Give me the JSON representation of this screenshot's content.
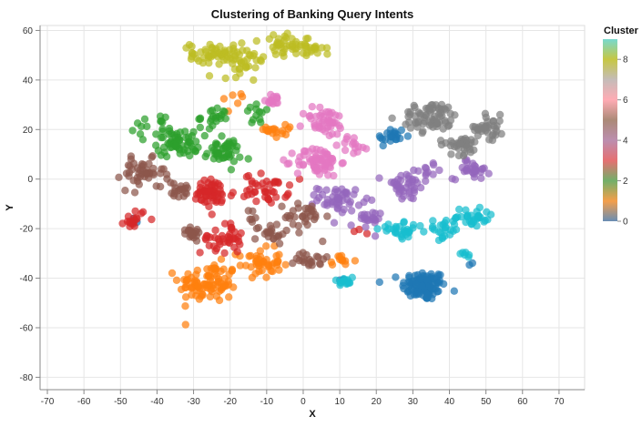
{
  "chart_data": {
    "type": "scatter",
    "title": "Clustering of Banking Query Intents",
    "xlabel": "X",
    "ylabel": "Y",
    "xlim": [
      -72,
      77
    ],
    "ylim": [
      -85,
      62
    ],
    "xticks": [
      -70,
      -60,
      -50,
      -40,
      -30,
      -20,
      -10,
      0,
      10,
      20,
      30,
      40,
      50,
      60,
      70
    ],
    "yticks": [
      -80,
      -60,
      -40,
      -20,
      0,
      20,
      40,
      60
    ],
    "grid": true,
    "legend": {
      "title": "Cluster",
      "position": "right",
      "type": "gradient",
      "ticks": [
        0,
        2,
        4,
        6,
        8
      ],
      "range": [
        0,
        9
      ],
      "stops": [
        "#4e79a7",
        "#f28e2b",
        "#59a14f",
        "#e15759",
        "#b07aa1",
        "#9c755f",
        "#ff9da7",
        "#bab0ac",
        "#bcbd22",
        "#5fd3c6"
      ]
    },
    "series": [
      {
        "cluster": 0,
        "color": "#1f77b4",
        "centers": [
          {
            "x": 33,
            "y": -43,
            "spread": [
              3,
              3
            ],
            "n": 110
          },
          {
            "x": 24,
            "y": 17,
            "spread": [
              2,
              2
            ],
            "n": 22
          },
          {
            "x": -46,
            "y": -16,
            "spread": [
              1,
              1
            ],
            "n": 3
          },
          {
            "x": 11,
            "y": -41,
            "spread": [
              1,
              1
            ],
            "n": 3
          },
          {
            "x": 46,
            "y": -35,
            "spread": [
              1,
              1
            ],
            "n": 2
          }
        ]
      },
      {
        "cluster": 1,
        "color": "#ff7f0e",
        "centers": [
          {
            "x": -26,
            "y": -42,
            "spread": [
              4,
              4
            ],
            "n": 90
          },
          {
            "x": -12,
            "y": -34,
            "spread": [
              3,
              3
            ],
            "n": 45
          },
          {
            "x": -6,
            "y": 20,
            "spread": [
              2,
              2
            ],
            "n": 18
          },
          {
            "x": 10,
            "y": -33,
            "spread": [
              2,
              1
            ],
            "n": 12
          },
          {
            "x": -19,
            "y": 32,
            "spread": [
              2,
              2
            ],
            "n": 6
          }
        ]
      },
      {
        "cluster": 2,
        "color": "#2ca02c",
        "centers": [
          {
            "x": -34,
            "y": 15,
            "spread": [
              3,
              3
            ],
            "n": 60
          },
          {
            "x": -22,
            "y": 11,
            "spread": [
              2.5,
              2.5
            ],
            "n": 45
          },
          {
            "x": -24,
            "y": 25,
            "spread": [
              2,
              2
            ],
            "n": 20
          },
          {
            "x": -42,
            "y": 21,
            "spread": [
              2,
              2
            ],
            "n": 14
          },
          {
            "x": -12,
            "y": 26,
            "spread": [
              2,
              2
            ],
            "n": 12
          }
        ]
      },
      {
        "cluster": 3,
        "color": "#d62728",
        "centers": [
          {
            "x": -25,
            "y": -6,
            "spread": [
              3,
              3
            ],
            "n": 55
          },
          {
            "x": -10,
            "y": -4,
            "spread": [
              3,
              3
            ],
            "n": 40
          },
          {
            "x": -22,
            "y": -24,
            "spread": [
              3,
              3
            ],
            "n": 40
          },
          {
            "x": -46,
            "y": -16,
            "spread": [
              1.5,
              2
            ],
            "n": 18
          },
          {
            "x": 16,
            "y": -21,
            "spread": [
              1,
              1
            ],
            "n": 3
          }
        ]
      },
      {
        "cluster": 4,
        "color": "#9467bd",
        "centers": [
          {
            "x": 10,
            "y": -8,
            "spread": [
              3,
              2.5
            ],
            "n": 50
          },
          {
            "x": 17,
            "y": -17,
            "spread": [
              2,
              2
            ],
            "n": 22
          },
          {
            "x": 28,
            "y": -3,
            "spread": [
              3,
              3
            ],
            "n": 40
          },
          {
            "x": 46,
            "y": 4,
            "spread": [
              2.5,
              2
            ],
            "n": 30
          },
          {
            "x": 35,
            "y": 4,
            "spread": [
              1.5,
              1.5
            ],
            "n": 10
          }
        ]
      },
      {
        "cluster": 5,
        "color": "#8c564b",
        "centers": [
          {
            "x": -44,
            "y": 2,
            "spread": [
              3,
              3
            ],
            "n": 45
          },
          {
            "x": -34,
            "y": -5,
            "spread": [
              2,
              2
            ],
            "n": 20
          },
          {
            "x": -31,
            "y": -21,
            "spread": [
              2,
              1.5
            ],
            "n": 20
          },
          {
            "x": -9,
            "y": -22,
            "spread": [
              2,
              2
            ],
            "n": 22
          },
          {
            "x": 2,
            "y": -32,
            "spread": [
              2,
              2
            ],
            "n": 22
          },
          {
            "x": 1,
            "y": -15,
            "spread": [
              3,
              3
            ],
            "n": 30
          },
          {
            "x": -15,
            "y": -15,
            "spread": [
              1.5,
              1.5
            ],
            "n": 6
          }
        ]
      },
      {
        "cluster": 6,
        "color": "#e377c2",
        "centers": [
          {
            "x": 4,
            "y": 7,
            "spread": [
              3,
              3
            ],
            "n": 70
          },
          {
            "x": 6,
            "y": 23,
            "spread": [
              3,
              3
            ],
            "n": 45
          },
          {
            "x": -8,
            "y": 32,
            "spread": [
              1.5,
              1
            ],
            "n": 15
          },
          {
            "x": 14,
            "y": 14,
            "spread": [
              2,
              2
            ],
            "n": 15
          }
        ]
      },
      {
        "cluster": 7,
        "color": "#7f7f7f",
        "centers": [
          {
            "x": 35,
            "y": 25,
            "spread": [
              4,
              3
            ],
            "n": 70
          },
          {
            "x": 51,
            "y": 21,
            "spread": [
              2,
              2.5
            ],
            "n": 35
          },
          {
            "x": 43,
            "y": 14,
            "spread": [
              3,
              2
            ],
            "n": 35
          }
        ]
      },
      {
        "cluster": 8,
        "color": "#bcbd22",
        "centers": [
          {
            "x": -25,
            "y": 51,
            "spread": [
              3,
              2
            ],
            "n": 45
          },
          {
            "x": -16,
            "y": 48,
            "spread": [
              3,
              3
            ],
            "n": 40
          },
          {
            "x": -5,
            "y": 54,
            "spread": [
              3,
              2
            ],
            "n": 35
          },
          {
            "x": 2,
            "y": 53,
            "spread": [
              2,
              2
            ],
            "n": 20
          }
        ]
      },
      {
        "cluster": 9,
        "color": "#17becf",
        "centers": [
          {
            "x": 27,
            "y": -21,
            "spread": [
              3,
              1.5
            ],
            "n": 30
          },
          {
            "x": 38,
            "y": -20,
            "spread": [
              2,
              2
            ],
            "n": 20
          },
          {
            "x": 46,
            "y": -16,
            "spread": [
              3,
              2.5
            ],
            "n": 35
          },
          {
            "x": 45,
            "y": -30,
            "spread": [
              1,
              1
            ],
            "n": 6
          },
          {
            "x": 11,
            "y": -41,
            "spread": [
              1.5,
              1
            ],
            "n": 14
          }
        ]
      }
    ]
  }
}
